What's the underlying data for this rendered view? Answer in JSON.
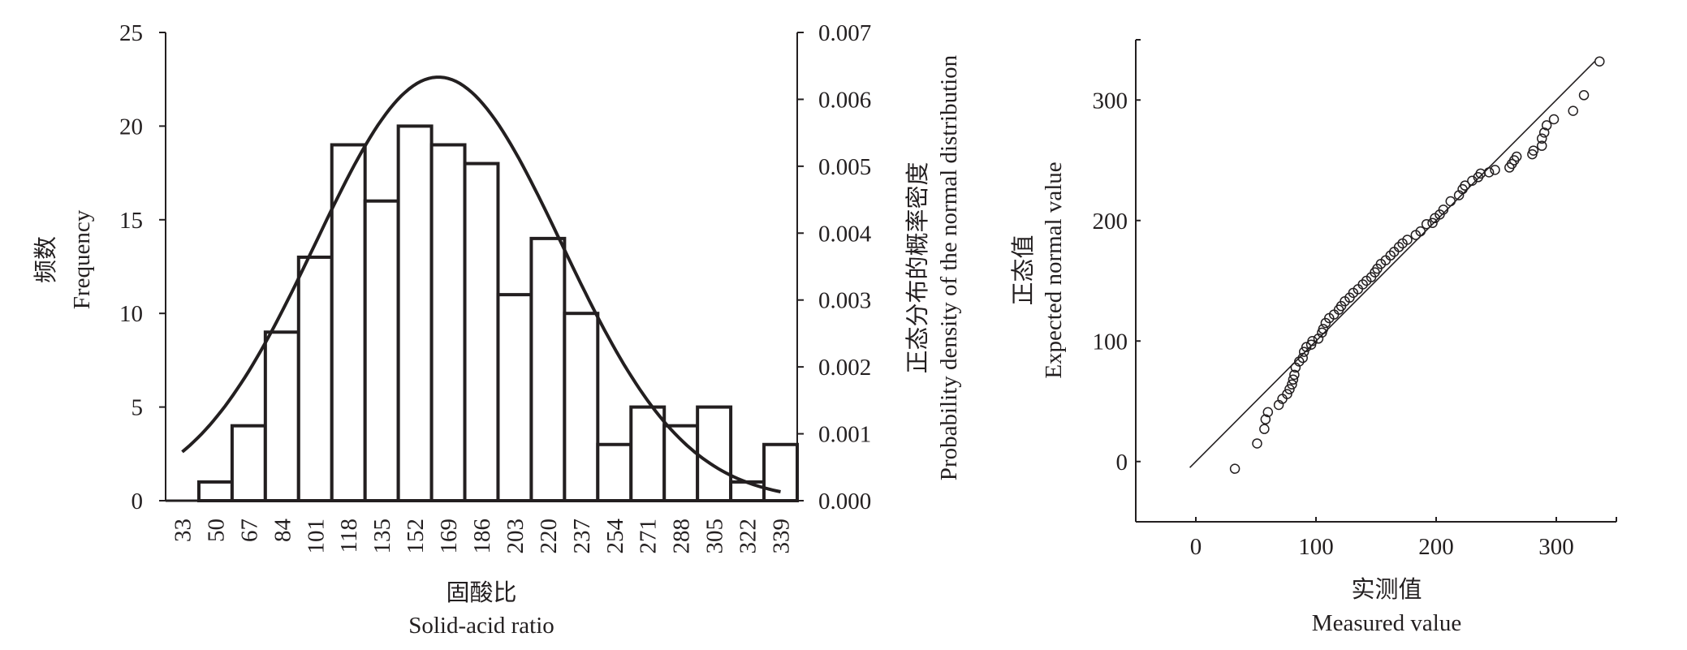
{
  "chart_data": [
    {
      "type": "bar",
      "subtype": "histogram with normal density curve",
      "title": "",
      "xlabel_cn": "固酸比",
      "xlabel": "Solid-acid ratio",
      "ylabel_cn": "频数",
      "ylabel": "Frequency",
      "y2label_cn": "正态分布的概率密度",
      "y2label": "Probability density of the normal distribution",
      "categories": [
        "33",
        "50",
        "67",
        "84",
        "101",
        "118",
        "135",
        "152",
        "169",
        "186",
        "203",
        "220",
        "237",
        "254",
        "271",
        "288",
        "305",
        "322",
        "339"
      ],
      "values": [
        0,
        1,
        4,
        9,
        13,
        19,
        16,
        20,
        19,
        18,
        11,
        14,
        10,
        3,
        5,
        4,
        5,
        1,
        3
      ],
      "ylim": [
        0,
        25
      ],
      "yticks": [
        "0",
        "5",
        "10",
        "15",
        "20",
        "25"
      ],
      "y2lim": [
        0,
        0.007
      ],
      "y2ticks": [
        "0.000",
        "0.001",
        "0.002",
        "0.003",
        "0.004",
        "0.005",
        "0.006",
        "0.007"
      ],
      "normal_curve": {
        "mean": 164,
        "sd": 63,
        "x_range": [
          33,
          339
        ],
        "peak_density": 0.0063
      },
      "grid": false
    },
    {
      "type": "scatter",
      "subtype": "normal Q-Q plot",
      "title": "",
      "xlabel_cn": "实测值",
      "xlabel": "Measured value",
      "ylabel_cn": "正态值",
      "ylabel": "Expected normal value",
      "xlim": [
        -50,
        350
      ],
      "ylim": [
        -50,
        350
      ],
      "xticks": [
        "0",
        "100",
        "200",
        "300"
      ],
      "yticks": [
        "0",
        "100",
        "200",
        "300"
      ],
      "reference_line": {
        "from": [
          -5,
          -5
        ],
        "to": [
          332,
          332
        ]
      },
      "points": [
        [
          32.5,
          -6
        ],
        [
          51,
          15
        ],
        [
          57,
          27
        ],
        [
          58,
          35
        ],
        [
          60,
          41
        ],
        [
          69,
          47
        ],
        [
          72,
          52
        ],
        [
          76,
          56
        ],
        [
          78,
          60
        ],
        [
          80,
          64
        ],
        [
          81,
          68
        ],
        [
          82,
          72
        ],
        [
          83,
          78
        ],
        [
          86,
          83
        ],
        [
          89,
          86
        ],
        [
          90,
          91
        ],
        [
          92,
          95
        ],
        [
          96,
          97
        ],
        [
          97,
          100
        ],
        [
          102,
          102
        ],
        [
          105,
          107
        ],
        [
          106,
          110
        ],
        [
          108,
          115
        ],
        [
          111,
          119
        ],
        [
          115,
          122
        ],
        [
          119,
          126
        ],
        [
          121,
          129
        ],
        [
          124,
          133
        ],
        [
          128,
          136
        ],
        [
          131,
          140
        ],
        [
          135,
          143
        ],
        [
          139,
          147
        ],
        [
          142,
          150
        ],
        [
          146,
          153
        ],
        [
          149,
          157
        ],
        [
          151,
          160
        ],
        [
          154,
          164
        ],
        [
          158,
          167
        ],
        [
          162,
          171
        ],
        [
          165,
          174
        ],
        [
          169,
          178
        ],
        [
          172,
          181
        ],
        [
          176,
          184
        ],
        [
          183,
          188
        ],
        [
          187,
          191
        ],
        [
          192,
          197
        ],
        [
          197,
          198
        ],
        [
          199,
          202
        ],
        [
          203,
          205
        ],
        [
          206,
          209
        ],
        [
          212,
          216
        ],
        [
          219,
          221
        ],
        [
          222,
          226
        ],
        [
          224,
          229
        ],
        [
          230,
          233
        ],
        [
          235,
          236
        ],
        [
          237,
          239
        ],
        [
          244,
          240
        ],
        [
          249,
          242
        ],
        [
          261,
          244
        ],
        [
          263,
          247
        ],
        [
          265,
          250
        ],
        [
          267,
          253
        ],
        [
          280,
          255
        ],
        [
          281,
          258
        ],
        [
          288,
          262
        ],
        [
          288,
          268
        ],
        [
          290,
          273
        ],
        [
          292,
          279
        ],
        [
          298,
          284
        ],
        [
          314,
          291
        ],
        [
          323,
          304
        ],
        [
          336,
          332
        ]
      ],
      "grid": false
    }
  ]
}
